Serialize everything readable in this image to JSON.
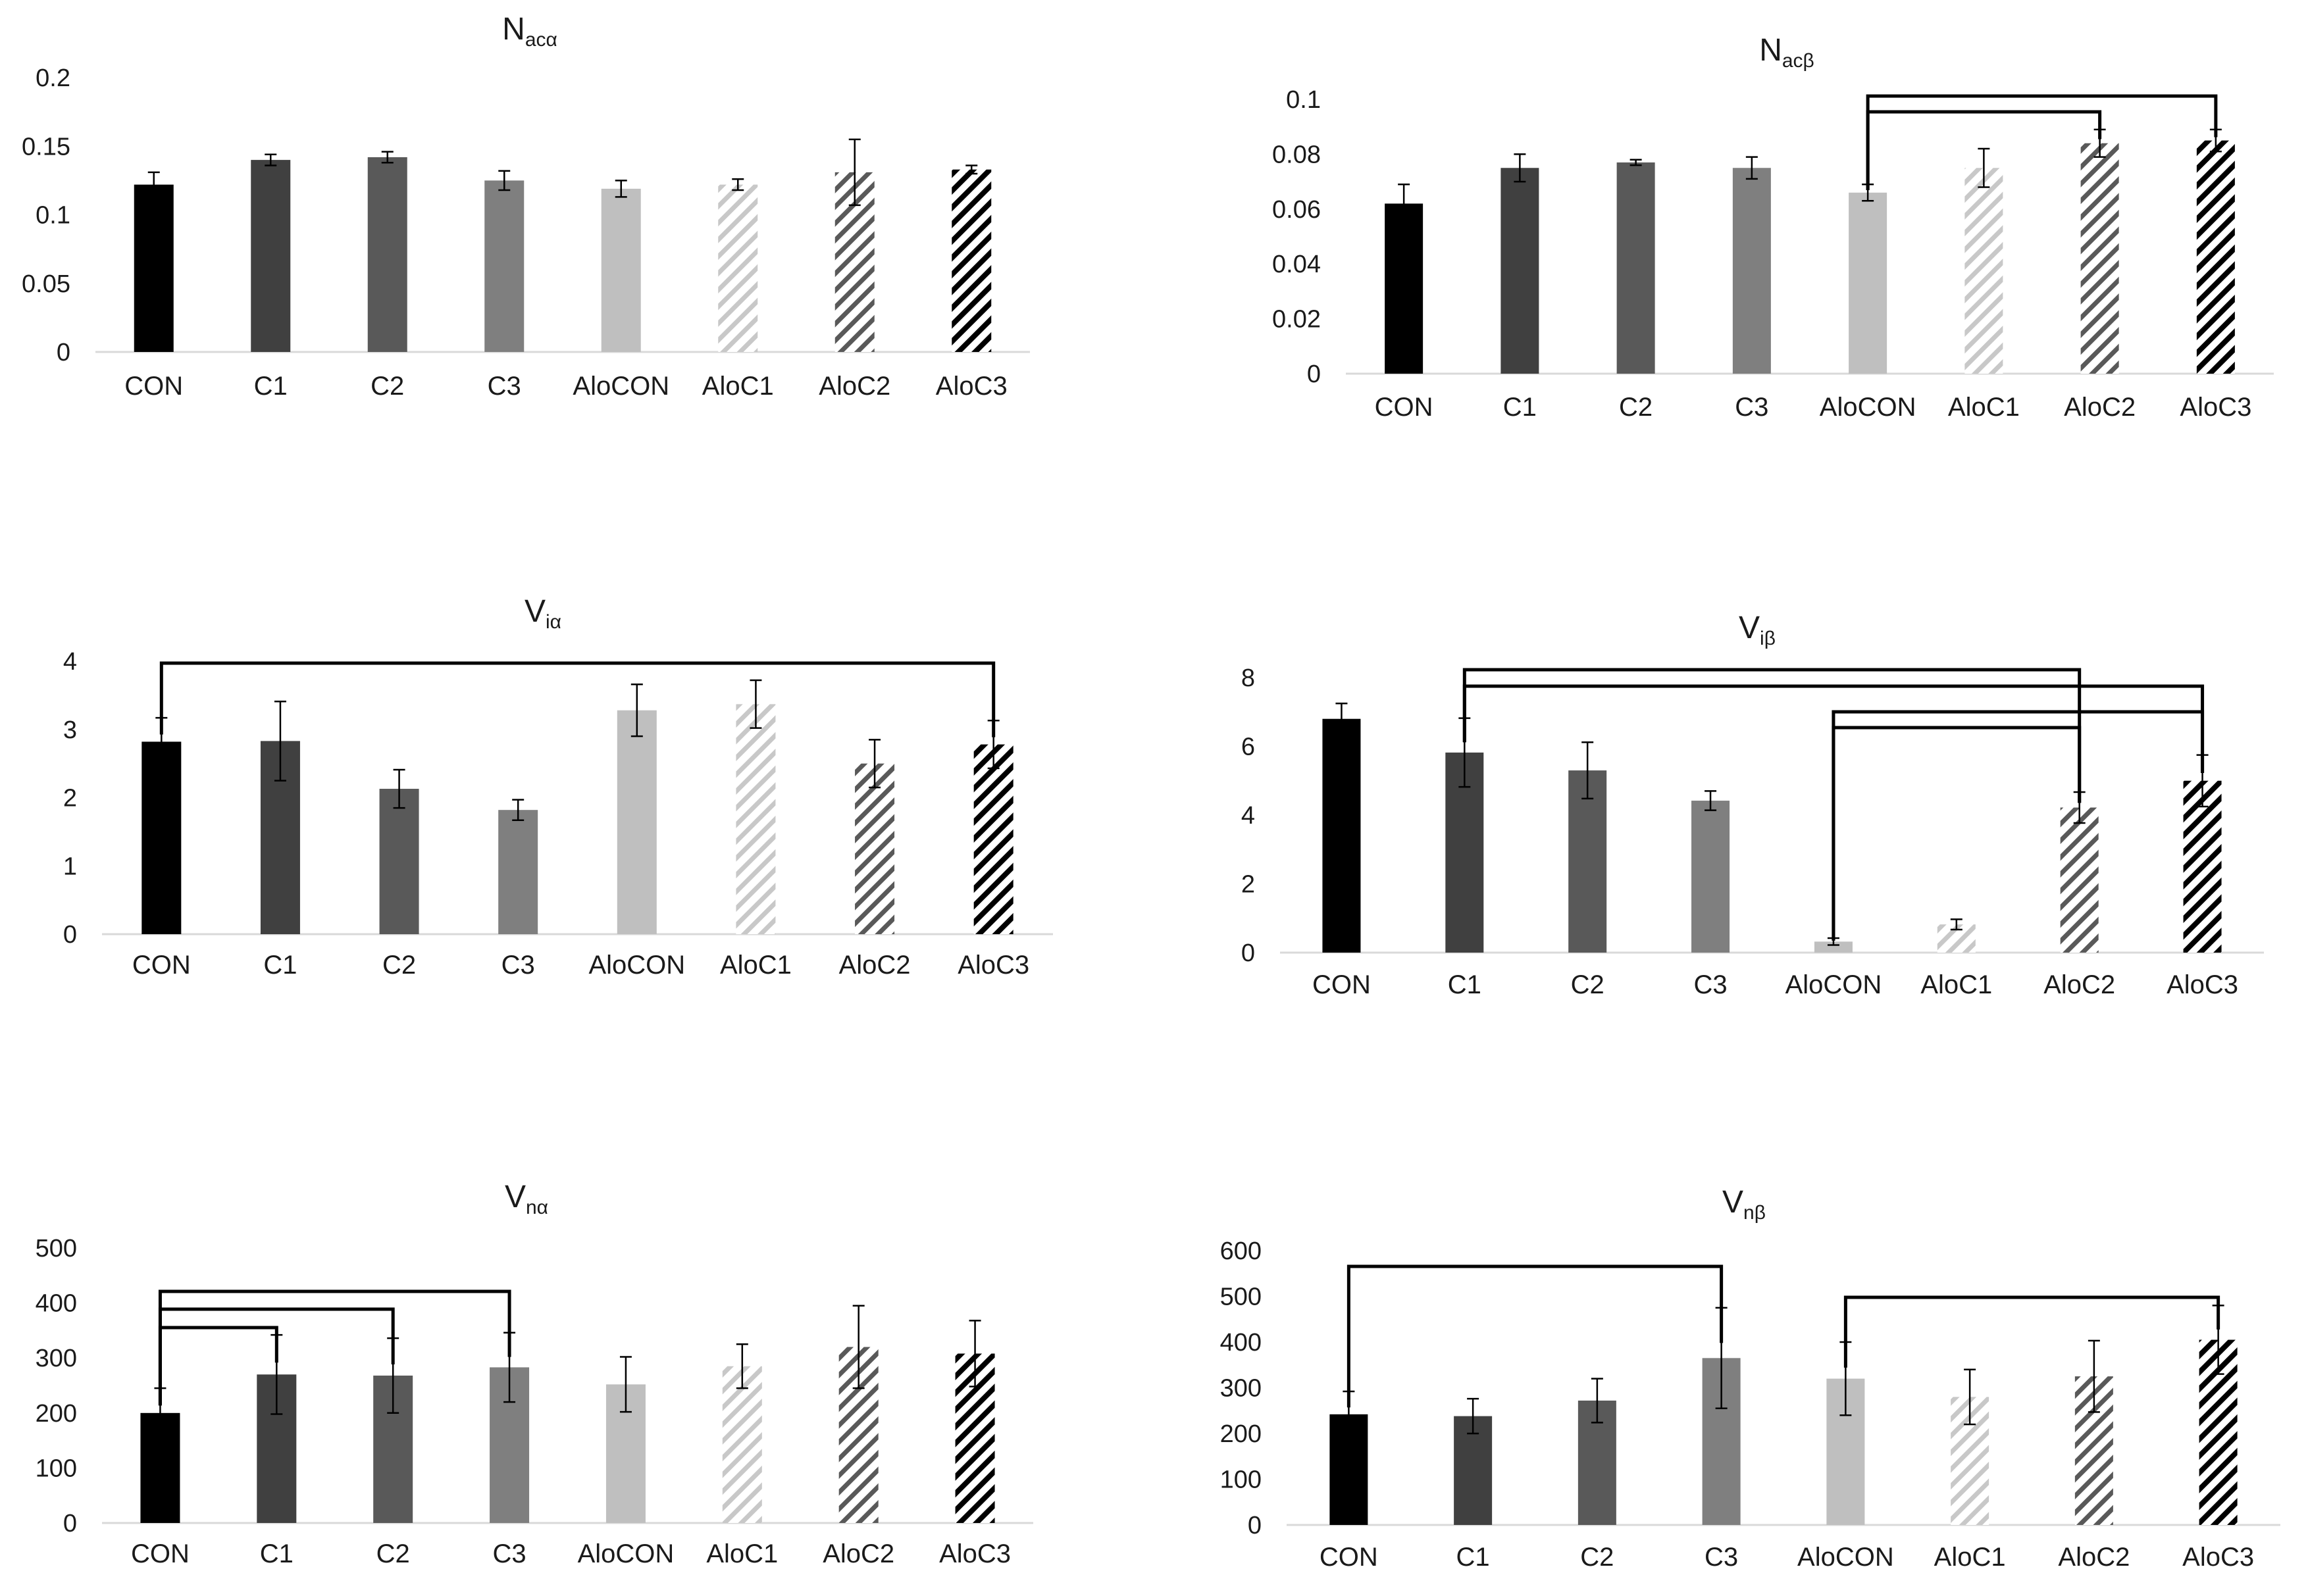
{
  "chart_data": [
    {
      "type": "bar",
      "title_main": "N",
      "title_sub": "acα",
      "categories": [
        "CON",
        "C1",
        "C2",
        "C3",
        "AloCON",
        "AloC1",
        "AloC2",
        "AloC3"
      ],
      "values": [
        0.122,
        0.14,
        0.142,
        0.125,
        0.119,
        0.122,
        0.131,
        0.133
      ],
      "errors": [
        0.009,
        0.004,
        0.004,
        0.007,
        0.006,
        0.004,
        0.024,
        0.003
      ],
      "ylim": [
        0,
        0.2
      ],
      "yticks": [
        "0",
        "0.05",
        "0.1",
        "0.15",
        "0.2"
      ],
      "ytick_values": [
        0,
        0.05,
        0.1,
        0.15,
        0.2
      ],
      "grid": false,
      "brackets": []
    },
    {
      "type": "bar",
      "title_main": "N",
      "title_sub": "acβ",
      "categories": [
        "CON",
        "C1",
        "C2",
        "C3",
        "AloCON",
        "AloC1",
        "AloC2",
        "AloC3"
      ],
      "values": [
        0.062,
        0.075,
        0.077,
        0.075,
        0.066,
        0.075,
        0.084,
        0.085
      ],
      "errors": [
        0.007,
        0.005,
        0.001,
        0.004,
        0.003,
        0.007,
        0.005,
        0.004
      ],
      "ylim": [
        0,
        0.1
      ],
      "yticks": [
        "0",
        "0.02",
        "0.04",
        "0.06",
        "0.08",
        "0.1"
      ],
      "ytick_values": [
        0,
        0.02,
        0.04,
        0.06,
        0.08,
        0.1
      ],
      "grid": false,
      "brackets": [
        [
          4,
          7
        ],
        [
          4,
          6
        ]
      ]
    },
    {
      "type": "bar",
      "title_main": "V",
      "title_sub": "iα",
      "categories": [
        "CON",
        "C1",
        "C2",
        "C3",
        "AloCON",
        "AloC1",
        "AloC2",
        "AloC3"
      ],
      "values": [
        2.82,
        2.83,
        2.13,
        1.82,
        3.28,
        3.37,
        2.5,
        2.78
      ],
      "errors": [
        0.35,
        0.58,
        0.28,
        0.15,
        0.38,
        0.35,
        0.35,
        0.35
      ],
      "ylim": [
        0,
        4
      ],
      "yticks": [
        "0",
        "1",
        "2",
        "3",
        "4"
      ],
      "ytick_values": [
        0,
        1,
        2,
        3,
        4
      ],
      "grid": false,
      "brackets": [
        [
          0,
          7
        ]
      ]
    },
    {
      "type": "bar",
      "title_main": "V",
      "title_sub": "iβ",
      "categories": [
        "CON",
        "C1",
        "C2",
        "C3",
        "AloCON",
        "AloC1",
        "AloC2",
        "AloC3"
      ],
      "values": [
        6.8,
        5.82,
        5.3,
        4.42,
        0.32,
        0.82,
        4.22,
        5.0
      ],
      "errors": [
        0.45,
        1.0,
        0.82,
        0.28,
        0.1,
        0.15,
        0.45,
        0.75
      ],
      "ylim": [
        0,
        8
      ],
      "yticks": [
        "0",
        "2",
        "4",
        "6",
        "8"
      ],
      "ytick_values": [
        0,
        2,
        4,
        6,
        8
      ],
      "grid": false,
      "brackets": [
        [
          1,
          6
        ],
        [
          1,
          7
        ],
        [
          4,
          7
        ],
        [
          4,
          6
        ]
      ]
    },
    {
      "type": "bar",
      "title_main": "V",
      "title_sub": "nα",
      "categories": [
        "CON",
        "C1",
        "C2",
        "C3",
        "AloCON",
        "AloC1",
        "AloC2",
        "AloC3"
      ],
      "values": [
        200,
        270,
        268,
        283,
        252,
        285,
        320,
        308
      ],
      "errors": [
        45,
        72,
        68,
        63,
        50,
        40,
        75,
        60
      ],
      "ylim": [
        0,
        500
      ],
      "yticks": [
        "0",
        "100",
        "200",
        "300",
        "400",
        "500"
      ],
      "ytick_values": [
        0,
        100,
        200,
        300,
        400,
        500
      ],
      "grid": false,
      "brackets": [
        [
          0,
          3
        ],
        [
          0,
          2
        ],
        [
          0,
          1
        ]
      ]
    },
    {
      "type": "bar",
      "title_main": "V",
      "title_sub": "nβ",
      "categories": [
        "CON",
        "C1",
        "C2",
        "C3",
        "AloCON",
        "AloC1",
        "AloC2",
        "AloC3"
      ],
      "values": [
        242,
        238,
        272,
        365,
        320,
        280,
        325,
        405
      ],
      "errors": [
        50,
        38,
        48,
        110,
        80,
        60,
        78,
        75
      ],
      "ylim": [
        0,
        600
      ],
      "yticks": [
        "0",
        "100",
        "200",
        "300",
        "400",
        "500",
        "600"
      ],
      "ytick_values": [
        0,
        100,
        200,
        300,
        400,
        500,
        600
      ],
      "grid": false,
      "brackets": [
        [
          0,
          3
        ],
        [
          4,
          7
        ]
      ]
    }
  ],
  "colors": {
    "con": "#000000",
    "c1": "#404040",
    "c2": "#595959",
    "c3": "#7f7f7f",
    "alocon": "#bfbfbf",
    "aloc1_hatch": "#c8c8c8",
    "aloc2_hatch": "#595959",
    "aloc3_hatch": "#000000",
    "axis": "#d9d9d9",
    "text": "#1a1a1a"
  }
}
